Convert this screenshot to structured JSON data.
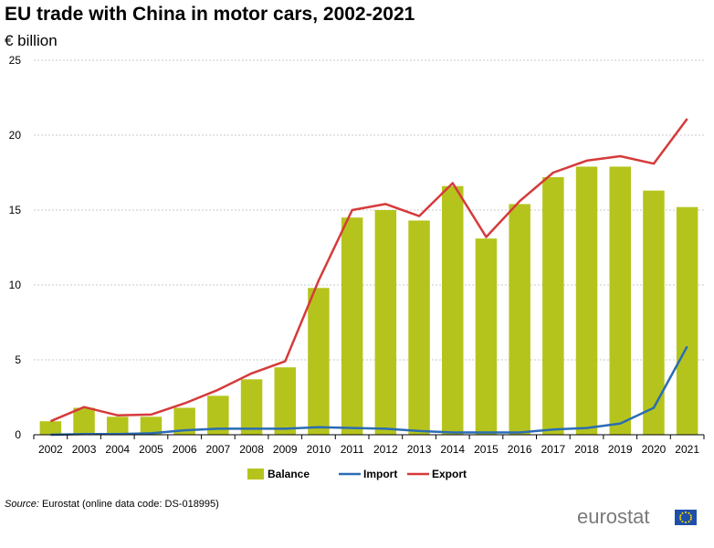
{
  "chart_data": {
    "type": "bar",
    "title": "EU trade with China in motor cars, 2002-2021",
    "ylabel": "€ billion",
    "xlabel": "",
    "ylim": [
      0,
      25
    ],
    "yticks": [
      "0",
      "5",
      "10",
      "15",
      "20",
      "25"
    ],
    "grid": true,
    "legend_position": "bottom",
    "categories": [
      "2002",
      "2003",
      "2004",
      "2005",
      "2006",
      "2007",
      "2008",
      "2009",
      "2010",
      "2011",
      "2012",
      "2013",
      "2014",
      "2015",
      "2016",
      "2017",
      "2018",
      "2019",
      "2020",
      "2021"
    ],
    "series": [
      {
        "name": "Balance",
        "kind": "bar",
        "color": "#b5c41c",
        "values": [
          0.9,
          1.8,
          1.2,
          1.2,
          1.8,
          2.6,
          3.7,
          4.5,
          9.8,
          14.5,
          15.0,
          14.3,
          16.6,
          13.1,
          15.4,
          17.2,
          17.9,
          17.9,
          16.3,
          15.2
        ]
      },
      {
        "name": "Import",
        "kind": "line",
        "color": "#2b6cb3",
        "values": [
          0.0,
          0.05,
          0.05,
          0.1,
          0.3,
          0.4,
          0.4,
          0.4,
          0.5,
          0.45,
          0.4,
          0.25,
          0.15,
          0.15,
          0.15,
          0.35,
          0.45,
          0.75,
          1.8,
          5.9
        ]
      },
      {
        "name": "Export",
        "kind": "line",
        "color": "#d63a3a",
        "values": [
          0.9,
          1.85,
          1.3,
          1.35,
          2.1,
          3.0,
          4.1,
          4.9,
          10.3,
          15.0,
          15.4,
          14.6,
          16.8,
          13.2,
          15.6,
          17.5,
          18.3,
          18.6,
          18.1,
          21.1
        ]
      }
    ]
  },
  "source": {
    "label": "Source:",
    "text": "Eurostat (online data code: DS-018995)"
  },
  "branding": {
    "logo_text": "eurostat"
  },
  "colors": {
    "grid": "#c8c8c8",
    "axis": "#000000",
    "flag_blue": "#1f4fa8",
    "flag_star": "#ffdd00"
  }
}
